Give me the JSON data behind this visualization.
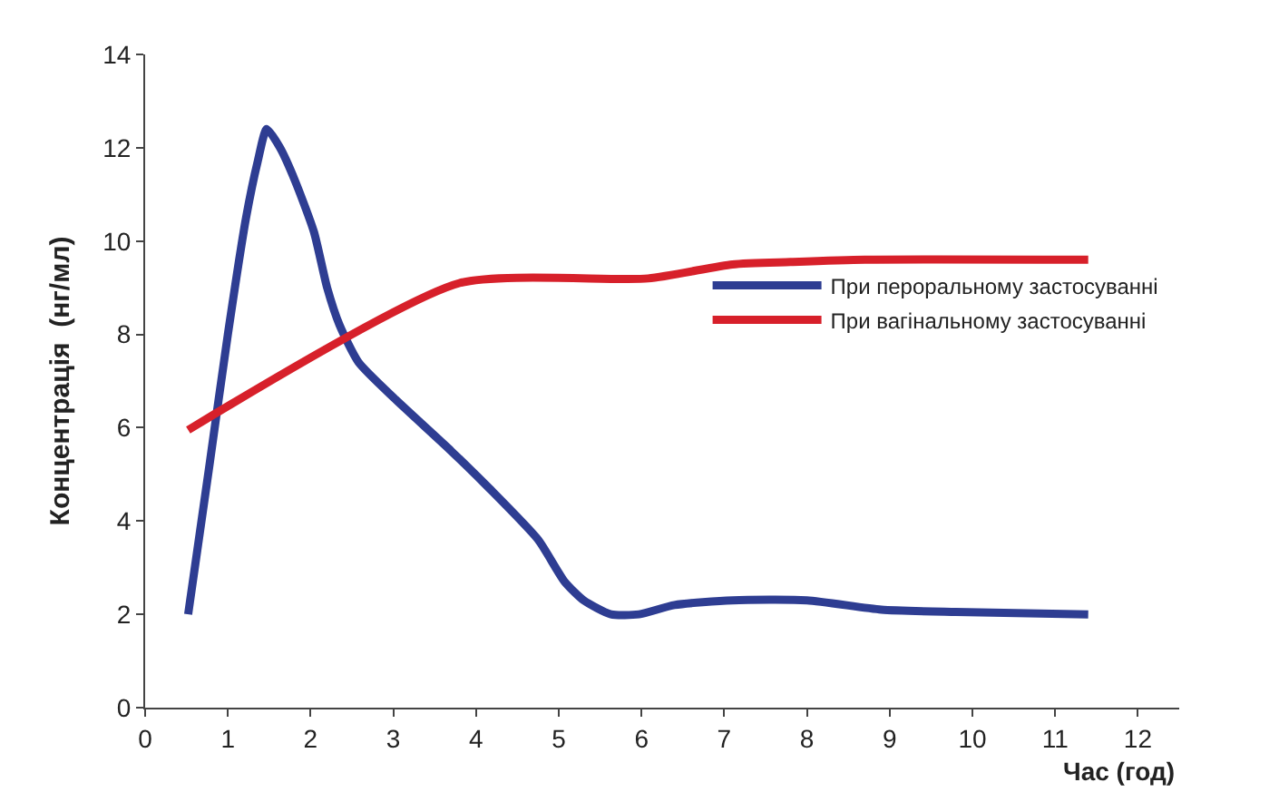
{
  "chart_data": {
    "type": "line",
    "xlabel": "Час (год)",
    "ylabel": "Концентрація  (нг/мл)",
    "xlim": [
      0,
      12.5
    ],
    "xticks": [
      0,
      1,
      2,
      3,
      4,
      5,
      6,
      7,
      8,
      9,
      10,
      11,
      12
    ],
    "ylim": [
      0,
      14
    ],
    "yticks": [
      0,
      2,
      4,
      6,
      8,
      10,
      12,
      14
    ],
    "legend": "right",
    "marker": "none",
    "line_style": "solid",
    "series": [
      {
        "name": "При пероральному застосуванні",
        "color": "#2e3d92",
        "x": [
          0.52,
          0.77,
          1.0,
          1.22,
          1.36,
          1.47,
          1.63,
          1.81,
          2.04,
          2.2,
          2.35,
          2.58,
          3.03,
          3.7,
          4.16,
          4.75,
          5.07,
          5.3,
          5.63,
          5.97,
          6.4,
          7.1,
          8.0,
          8.9,
          9.8,
          11.4
        ],
        "values": [
          2.0,
          5.1,
          8.0,
          10.5,
          11.7,
          12.4,
          12.0,
          11.3,
          10.2,
          9.0,
          8.2,
          7.4,
          6.6,
          5.5,
          4.7,
          3.6,
          2.7,
          2.3,
          2.0,
          2.0,
          2.2,
          2.3,
          2.3,
          2.1,
          2.05,
          2.0
        ]
      },
      {
        "name": "При вагінальному застосуванні",
        "color": "#d7202a",
        "x": [
          0.52,
          3.8,
          6.08,
          7.1,
          7.8,
          8.7,
          11.4
        ],
        "values": [
          5.95,
          9.1,
          9.2,
          9.5,
          9.55,
          9.6,
          9.6
        ]
      }
    ]
  }
}
